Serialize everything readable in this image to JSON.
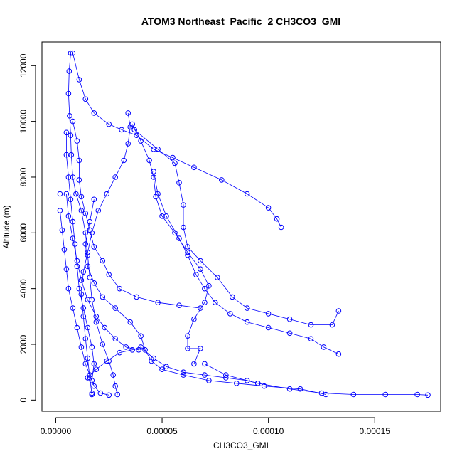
{
  "chart_data": {
    "type": "scatter",
    "title": "ATOM3 Northeast_Pacific_2 CH3CO3_GMI",
    "xlabel": "CH3CO3_GMI",
    "ylabel": "Altitude (m)",
    "xlim": [
      -6.5e-06,
      0.000181
    ],
    "ylim": [
      -400,
      12850
    ],
    "x_ticks": [
      0,
      5e-05,
      0.0001,
      0.00015
    ],
    "x_tick_labels": [
      "0.00000",
      "0.00005",
      "0.00010",
      "0.00015"
    ],
    "y_ticks": [
      0,
      2000,
      4000,
      6000,
      8000,
      10000,
      12000
    ],
    "y_tick_labels": [
      "0",
      "2000",
      "4000",
      "6000",
      "8000",
      "10000",
      "12000"
    ],
    "grid": false,
    "legend": "none",
    "colors": {
      "series": "#0000ff",
      "axes": "#000000",
      "background": "#ffffff"
    },
    "marker": "open-circle",
    "series": [
      {
        "values": [
          [
            7e-06,
            12450
          ],
          [
            6.3e-06,
            11800
          ],
          [
            6e-06,
            11000
          ],
          [
            6.5e-06,
            10200
          ],
          [
            7e-06,
            9500
          ],
          [
            7.3e-06,
            8800
          ],
          [
            8e-06,
            8000
          ],
          [
            9.5e-06,
            7400
          ],
          [
            1.2e-05,
            6800
          ],
          [
            1.4e-05,
            6000
          ],
          [
            1.5e-05,
            5200
          ],
          [
            1.6e-05,
            4400
          ],
          [
            1.7e-05,
            3600
          ],
          [
            1.9e-05,
            2800
          ],
          [
            2.2e-05,
            2000
          ],
          [
            2.5e-05,
            1400
          ],
          [
            2.7e-05,
            900
          ],
          [
            2.8e-05,
            500
          ],
          [
            2.9e-05,
            200
          ]
        ]
      },
      {
        "values": [
          [
            8e-06,
            12450
          ],
          [
            1.1e-05,
            11500
          ],
          [
            1.4e-05,
            10800
          ],
          [
            1.8e-05,
            10300
          ],
          [
            2.5e-05,
            9900
          ],
          [
            3.1e-05,
            9700
          ],
          [
            3.8e-05,
            9500
          ],
          [
            4.6e-05,
            9000
          ],
          [
            5.5e-05,
            8700
          ],
          [
            6.5e-05,
            8350
          ],
          [
            7.8e-05,
            7900
          ],
          [
            9e-05,
            7400
          ],
          [
            0.0001,
            6900
          ],
          [
            0.000104,
            6500
          ],
          [
            0.000106,
            6200
          ]
        ]
      },
      {
        "values": [
          [
            3.4e-05,
            10300
          ],
          [
            3.5e-05,
            9800
          ],
          [
            3.4e-05,
            9200
          ],
          [
            3.2e-05,
            8600
          ],
          [
            2.8e-05,
            8000
          ],
          [
            2.4e-05,
            7400
          ],
          [
            2e-05,
            6800
          ],
          [
            1.7e-05,
            6000
          ],
          [
            1.5e-05,
            5300
          ],
          [
            1.3e-05,
            4600
          ],
          [
            1.2e-05,
            3800
          ],
          [
            1.3e-05,
            3000
          ],
          [
            1.4e-05,
            2200
          ],
          [
            1.5e-05,
            1500
          ],
          [
            1.6e-05,
            800
          ],
          [
            1.7e-05,
            200
          ]
        ]
      },
      {
        "values": [
          [
            3.6e-05,
            9900
          ],
          [
            4e-05,
            9300
          ],
          [
            4.4e-05,
            8600
          ],
          [
            4.6e-05,
            8000
          ],
          [
            4.7e-05,
            7300
          ],
          [
            5e-05,
            6600
          ],
          [
            5.6e-05,
            6000
          ],
          [
            6.2e-05,
            5300
          ],
          [
            6.8e-05,
            4700
          ],
          [
            7.2e-05,
            4100
          ],
          [
            7e-05,
            3500
          ],
          [
            6.5e-05,
            2900
          ],
          [
            6.2e-05,
            2300
          ],
          [
            6.2e-05,
            1850
          ],
          [
            6.8e-05,
            1850
          ],
          [
            6.5e-05,
            1300
          ],
          [
            7e-05,
            1300
          ],
          [
            8e-05,
            900
          ],
          [
            9.5e-05,
            600
          ],
          [
            0.00011,
            400
          ],
          [
            0.000125,
            250
          ],
          [
            0.00014,
            200
          ],
          [
            0.000155,
            200
          ],
          [
            0.00017,
            200
          ],
          [
            0.000175,
            180
          ]
        ]
      },
      {
        "values": [
          [
            3.7e-05,
            9700
          ],
          [
            4.8e-05,
            9000
          ],
          [
            5.6e-05,
            8500
          ],
          [
            5.8e-05,
            7800
          ],
          [
            6e-05,
            7000
          ],
          [
            6e-05,
            6200
          ],
          [
            6.2e-05,
            5500
          ],
          [
            6.8e-05,
            5000
          ],
          [
            7.6e-05,
            4400
          ],
          [
            8.3e-05,
            3700
          ],
          [
            9e-05,
            3300
          ],
          [
            0.0001,
            3100
          ],
          [
            0.00011,
            2900
          ],
          [
            0.00012,
            2700
          ],
          [
            0.00013,
            2700
          ],
          [
            0.000133,
            3200
          ]
        ]
      },
      {
        "values": [
          [
            4.6e-05,
            8200
          ],
          [
            4.8e-05,
            7400
          ],
          [
            5.2e-05,
            6600
          ],
          [
            5.8e-05,
            5800
          ],
          [
            6.2e-05,
            5200
          ],
          [
            6.6e-05,
            4500
          ],
          [
            7e-05,
            4000
          ],
          [
            7.5e-05,
            3500
          ],
          [
            8.2e-05,
            3100
          ],
          [
            9e-05,
            2800
          ],
          [
            0.0001,
            2600
          ],
          [
            0.00011,
            2400
          ],
          [
            0.00012,
            2200
          ],
          [
            0.000126,
            1900
          ],
          [
            0.000133,
            1650
          ]
        ]
      },
      {
        "values": [
          [
            1.8e-05,
            7200
          ],
          [
            1.6e-05,
            6400
          ],
          [
            1.4e-05,
            5600
          ],
          [
            1.5e-05,
            4800
          ],
          [
            1.8e-05,
            4200
          ],
          [
            2.2e-05,
            3700
          ],
          [
            2.8e-05,
            3300
          ],
          [
            3.5e-05,
            2800
          ],
          [
            4e-05,
            2300
          ],
          [
            4.2e-05,
            1800
          ],
          [
            4.5e-05,
            1400
          ],
          [
            5e-05,
            1100
          ],
          [
            6e-05,
            900
          ],
          [
            7.2e-05,
            700
          ],
          [
            8.5e-05,
            600
          ],
          [
            9.8e-05,
            500
          ],
          [
            0.000115,
            400
          ],
          [
            0.000127,
            200
          ]
        ]
      },
      {
        "values": [
          [
            2e-06,
            7400
          ],
          [
            2e-06,
            6800
          ],
          [
            3e-06,
            6100
          ],
          [
            4e-06,
            5400
          ],
          [
            5e-06,
            4700
          ],
          [
            6e-06,
            4000
          ],
          [
            8e-06,
            3300
          ],
          [
            1e-05,
            2600
          ],
          [
            1.2e-05,
            1900
          ],
          [
            1.4e-05,
            1300
          ],
          [
            1.6e-05,
            900
          ],
          [
            1.8e-05,
            500
          ],
          [
            2.1e-05,
            250
          ],
          [
            2.5e-05,
            180
          ]
        ]
      },
      {
        "values": [
          [
            5e-06,
            7400
          ],
          [
            6e-06,
            6600
          ],
          [
            8e-06,
            5800
          ],
          [
            1e-05,
            5000
          ],
          [
            1.2e-05,
            4300
          ],
          [
            1.5e-05,
            3600
          ],
          [
            1.9e-05,
            3000
          ],
          [
            2.3e-05,
            2600
          ],
          [
            2.8e-05,
            2200
          ],
          [
            3.3e-05,
            1900
          ],
          [
            3.9e-05,
            1800
          ]
        ]
      },
      {
        "values": [
          [
            1.5e-05,
            800
          ],
          [
            1.9e-05,
            1100
          ],
          [
            2.4e-05,
            1400
          ],
          [
            3e-05,
            1700
          ],
          [
            3.6e-05,
            1800
          ],
          [
            4e-05,
            1900
          ],
          [
            4.6e-05,
            1500
          ],
          [
            5.2e-05,
            1200
          ],
          [
            6e-05,
            1000
          ],
          [
            7e-05,
            900
          ],
          [
            8e-05,
            800
          ],
          [
            9e-05,
            700
          ],
          [
            9.5e-05,
            600
          ]
        ]
      },
      {
        "values": [
          [
            8e-06,
            10000
          ],
          [
            1e-05,
            9300
          ],
          [
            1.1e-05,
            8600
          ],
          [
            1.1e-05,
            7900
          ],
          [
            1.2e-05,
            7300
          ],
          [
            1.4e-05,
            6700
          ],
          [
            1.6e-05,
            6100
          ],
          [
            1.8e-05,
            5500
          ],
          [
            2.2e-05,
            5000
          ],
          [
            2.5e-05,
            4500
          ],
          [
            3e-05,
            4000
          ],
          [
            3.8e-05,
            3700
          ],
          [
            4.8e-05,
            3500
          ],
          [
            5.8e-05,
            3400
          ],
          [
            6.8e-05,
            3300
          ]
        ]
      },
      {
        "values": [
          [
            5e-06,
            9600
          ],
          [
            5e-06,
            8800
          ],
          [
            6e-06,
            8000
          ],
          [
            7e-06,
            7200
          ],
          [
            8e-06,
            6400
          ],
          [
            9e-06,
            5600
          ],
          [
            1e-05,
            4800
          ],
          [
            1.1e-05,
            4000
          ],
          [
            1.3e-05,
            3300
          ],
          [
            1.5e-05,
            2600
          ],
          [
            1.7e-05,
            1900
          ],
          [
            1.8e-05,
            1300
          ],
          [
            1.7e-05,
            700
          ],
          [
            1.7e-05,
            250
          ]
        ]
      }
    ]
  }
}
